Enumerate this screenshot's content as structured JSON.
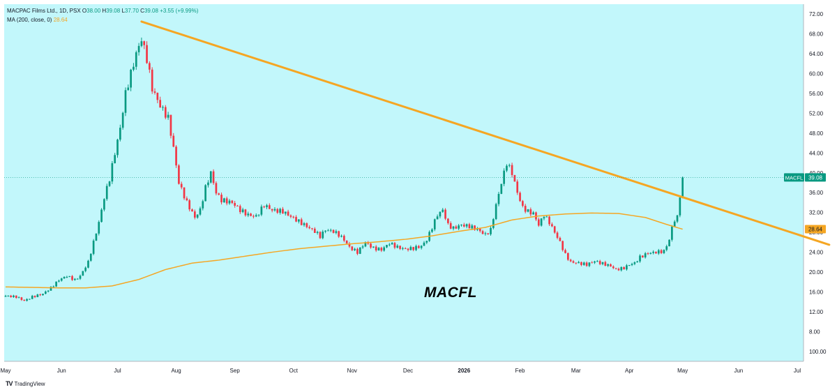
{
  "legend": {
    "symbol_line": "MACPAC Films Ltd., 1D, PSX",
    "ohlc": {
      "o_label": "O",
      "o": "38.00",
      "h_label": "H",
      "h": "39.08",
      "l_label": "L",
      "l": "37.70",
      "c_label": "C",
      "c": "39.08",
      "change": "+3.55 (+9.99%)"
    },
    "ma_line": "MA (200, close, 0)",
    "ma_value": "28.64"
  },
  "watermark": "MACFL",
  "brand": "TradingView",
  "colors": {
    "background": "#c2f7fb",
    "up": "#089981",
    "down": "#f23645",
    "ma": "#f5a623",
    "trendline": "#f5a623",
    "axis_text": "#131722"
  },
  "chart_data": {
    "type": "candlestick",
    "symbol": "MACFL",
    "y_ticks": [
      8,
      12,
      16,
      20,
      24,
      28,
      32,
      36,
      40,
      44,
      48,
      52,
      56,
      60,
      64,
      68,
      72
    ],
    "y_tick_labels": [
      "8.00",
      "12.00",
      "16.00",
      "20.00",
      "24.00",
      "28.00",
      "32.00",
      "36.00",
      "40.00",
      "44.00",
      "48.00",
      "52.00",
      "56.00",
      "60.00",
      "64.00",
      "68.00",
      "72.00"
    ],
    "y_bottom_label": "100.00",
    "ylim": [
      2,
      74
    ],
    "x_months": [
      "May",
      "Jun",
      "Jul",
      "Aug",
      "Sep",
      "Oct",
      "Nov",
      "Dec",
      "2026",
      "Feb",
      "Mar",
      "Apr",
      "May",
      "Jun",
      "Jul"
    ],
    "last_price_label": "MACFL",
    "last_price": "39.08",
    "ma_label_value": "28.64",
    "price_anchors": [
      [
        0,
        15.2
      ],
      [
        4,
        15.0
      ],
      [
        7,
        14.2
      ],
      [
        10,
        15.0
      ],
      [
        14,
        15.6
      ],
      [
        17,
        16.8
      ],
      [
        20,
        18.4
      ],
      [
        23,
        19.2
      ],
      [
        26,
        18.4
      ],
      [
        28,
        19.2
      ],
      [
        31,
        22.0
      ],
      [
        33,
        26.0
      ],
      [
        35,
        30.0
      ],
      [
        37,
        35.0
      ],
      [
        39,
        38.8
      ],
      [
        41,
        44.0
      ],
      [
        43,
        49.0
      ],
      [
        45,
        56.0
      ],
      [
        47,
        60.0
      ],
      [
        49,
        64.0
      ],
      [
        51,
        67.0
      ],
      [
        53,
        63.0
      ],
      [
        55,
        57.0
      ],
      [
        58,
        53.5
      ],
      [
        61,
        51.0
      ],
      [
        63,
        45.0
      ],
      [
        65,
        38.0
      ],
      [
        68,
        34.0
      ],
      [
        71,
        31.0
      ],
      [
        73,
        32.5
      ],
      [
        75,
        37.0
      ],
      [
        77,
        40.0
      ],
      [
        79,
        36.0
      ],
      [
        81,
        34.5
      ],
      [
        85,
        34.0
      ],
      [
        88,
        32.5
      ],
      [
        91,
        31.5
      ],
      [
        94,
        31.2
      ],
      [
        97,
        33.5
      ],
      [
        100,
        32.5
      ],
      [
        104,
        32.2
      ],
      [
        107,
        31.2
      ],
      [
        110,
        30.2
      ],
      [
        113,
        29.2
      ],
      [
        116,
        28.2
      ],
      [
        118,
        27.2
      ],
      [
        120,
        28.5
      ],
      [
        123,
        28.2
      ],
      [
        125,
        27.5
      ],
      [
        127,
        26.5
      ],
      [
        129,
        25.0
      ],
      [
        132,
        24.0
      ],
      [
        135,
        26.0
      ],
      [
        138,
        24.8
      ],
      [
        141,
        24.5
      ],
      [
        144,
        25.8
      ],
      [
        147,
        25.0
      ],
      [
        150,
        24.6
      ],
      [
        153,
        24.8
      ],
      [
        156,
        25.2
      ],
      [
        158,
        26.5
      ],
      [
        160,
        29.0
      ],
      [
        162,
        31.5
      ],
      [
        164,
        32.5
      ],
      [
        166,
        29.5
      ],
      [
        168,
        28.8
      ],
      [
        171,
        29.5
      ],
      [
        174,
        29.2
      ],
      [
        177,
        28.6
      ],
      [
        180,
        27.5
      ],
      [
        182,
        28.5
      ],
      [
        184,
        33.5
      ],
      [
        186,
        38.0
      ],
      [
        188,
        42.0
      ],
      [
        190,
        40.0
      ],
      [
        192,
        36.0
      ],
      [
        194,
        33.0
      ],
      [
        196,
        32.2
      ],
      [
        198,
        31.8
      ],
      [
        200,
        29.5
      ],
      [
        202,
        31.5
      ],
      [
        204,
        30.0
      ],
      [
        206,
        28.0
      ],
      [
        208,
        26.0
      ],
      [
        210,
        23.5
      ],
      [
        212,
        22.0
      ],
      [
        215,
        21.8
      ],
      [
        218,
        21.5
      ],
      [
        221,
        22.2
      ],
      [
        224,
        21.7
      ],
      [
        227,
        21.2
      ],
      [
        229,
        20.5
      ],
      [
        232,
        20.8
      ],
      [
        234,
        21.5
      ],
      [
        236,
        21.8
      ],
      [
        238,
        23.0
      ],
      [
        241,
        23.8
      ],
      [
        244,
        24.0
      ],
      [
        247,
        24.2
      ],
      [
        249,
        26.5
      ],
      [
        250,
        29.0
      ],
      [
        251,
        30.5
      ],
      [
        252,
        31.0
      ],
      [
        253,
        35.5
      ],
      [
        254,
        39.08
      ]
    ],
    "ma_anchors": [
      [
        0,
        17.0
      ],
      [
        20,
        16.8
      ],
      [
        30,
        16.8
      ],
      [
        40,
        17.2
      ],
      [
        50,
        18.5
      ],
      [
        60,
        20.5
      ],
      [
        70,
        21.8
      ],
      [
        80,
        22.4
      ],
      [
        90,
        23.2
      ],
      [
        100,
        24.0
      ],
      [
        110,
        24.7
      ],
      [
        120,
        25.2
      ],
      [
        130,
        25.7
      ],
      [
        140,
        26.1
      ],
      [
        150,
        26.6
      ],
      [
        160,
        27.3
      ],
      [
        170,
        28.2
      ],
      [
        180,
        29.0
      ],
      [
        190,
        30.5
      ],
      [
        200,
        31.3
      ],
      [
        210,
        31.7
      ],
      [
        220,
        31.9
      ],
      [
        230,
        31.8
      ],
      [
        240,
        31.0
      ],
      [
        248,
        29.6
      ],
      [
        254,
        28.64
      ]
    ],
    "trendline": {
      "from": [
        51,
        70.5
      ],
      "to": [
        309,
        25.5
      ]
    },
    "month_positions": [
      0,
      21,
      42,
      64,
      86,
      108,
      130,
      151,
      172,
      193,
      214,
      234,
      254,
      275,
      297
    ],
    "total_slots": 297
  }
}
